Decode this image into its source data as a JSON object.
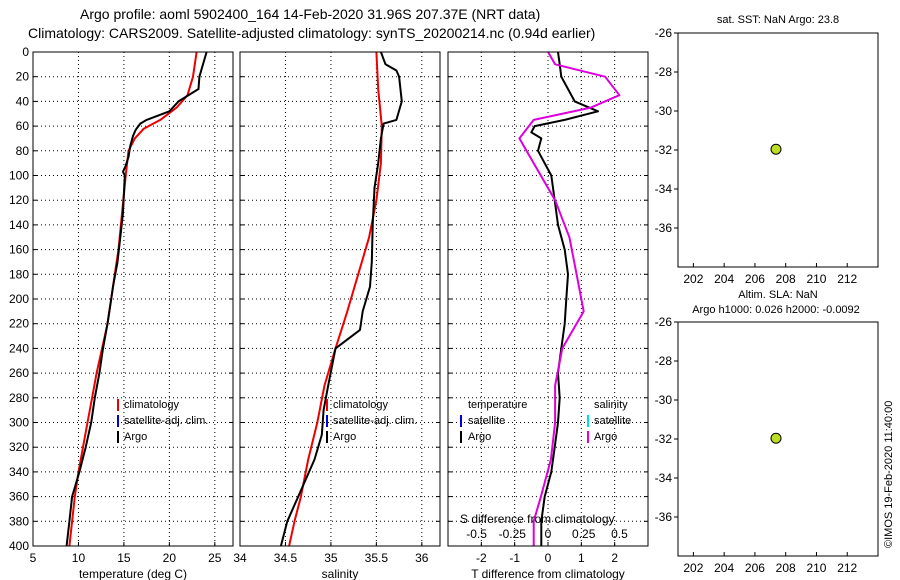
{
  "header": {
    "line1": "Argo profile: aoml 5902400_164 14-Feb-2020 31.96S 207.37E (NRT data)",
    "line2": "Climatology: CARS2009. Satellite-adjusted climatology: synTS_20200214.nc (0.94d earlier)"
  },
  "colors": {
    "climatology": "#ee0000",
    "satellite": "#0000dd",
    "argo": "#000000",
    "argo_salinity": "#dd00dd",
    "satellite_salinity": "#00dddd",
    "marker": "#bbdd22"
  },
  "chart_data": [
    {
      "id": "temperature",
      "type": "line",
      "xlabel": "temperature (deg C)",
      "xlim": [
        5,
        27
      ],
      "xticks": [
        5,
        10,
        15,
        20,
        25
      ],
      "ylim": [
        400,
        0
      ],
      "yticks": [
        0,
        20,
        40,
        60,
        80,
        100,
        120,
        140,
        160,
        180,
        200,
        220,
        240,
        260,
        280,
        300,
        320,
        340,
        360,
        380,
        400
      ],
      "grid": true,
      "legend": [
        "climatology",
        "satellite-adj. clim.",
        "Argo"
      ],
      "series": [
        {
          "name": "climatology",
          "color": "#ee0000",
          "points": [
            [
              23.0,
              0
            ],
            [
              22.6,
              20
            ],
            [
              22.0,
              35
            ],
            [
              20.8,
              45
            ],
            [
              19.0,
              55
            ],
            [
              17.2,
              62
            ],
            [
              16.2,
              70
            ],
            [
              15.5,
              80
            ],
            [
              15.2,
              100
            ],
            [
              14.8,
              130
            ],
            [
              14.4,
              160
            ],
            [
              14.0,
              180
            ],
            [
              13.6,
              200
            ],
            [
              13.2,
              220
            ],
            [
              12.6,
              240
            ],
            [
              12.0,
              260
            ],
            [
              11.5,
              280
            ],
            [
              11.0,
              300
            ],
            [
              10.5,
              320
            ],
            [
              10.0,
              340
            ],
            [
              9.6,
              360
            ],
            [
              9.3,
              380
            ],
            [
              9.0,
              400
            ]
          ]
        },
        {
          "name": "Argo",
          "color": "#000000",
          "points": [
            [
              24.1,
              0
            ],
            [
              23.7,
              10
            ],
            [
              23.3,
              20
            ],
            [
              23.2,
              30
            ],
            [
              21.0,
              40
            ],
            [
              20.0,
              48
            ],
            [
              17.5,
              55
            ],
            [
              16.8,
              58
            ],
            [
              16.3,
              63
            ],
            [
              16.0,
              68
            ],
            [
              15.7,
              76
            ],
            [
              15.5,
              85
            ],
            [
              15.2,
              92
            ],
            [
              14.9,
              97
            ],
            [
              15.1,
              100
            ],
            [
              14.9,
              130
            ],
            [
              14.6,
              150
            ],
            [
              14.3,
              170
            ],
            [
              13.8,
              190
            ],
            [
              13.6,
              200
            ],
            [
              13.2,
              220
            ],
            [
              12.7,
              240
            ],
            [
              12.3,
              260
            ],
            [
              11.8,
              280
            ],
            [
              11.4,
              300
            ],
            [
              10.8,
              320
            ],
            [
              10.1,
              340
            ],
            [
              9.3,
              360
            ],
            [
              9.0,
              380
            ],
            [
              8.7,
              400
            ]
          ]
        }
      ]
    },
    {
      "id": "salinity",
      "type": "line",
      "xlabel": "salinity",
      "xlim": [
        34,
        36.2
      ],
      "xticks": [
        "34",
        "34.5",
        "35",
        "35.5",
        "36"
      ],
      "ylim": [
        400,
        0
      ],
      "grid": true,
      "legend": [
        "climatology",
        "satellite-adj. clim.",
        "Argo"
      ],
      "series": [
        {
          "name": "climatology",
          "color": "#ee0000",
          "points": [
            [
              35.5,
              0
            ],
            [
              35.52,
              30
            ],
            [
              35.56,
              60
            ],
            [
              35.55,
              90
            ],
            [
              35.5,
              120
            ],
            [
              35.42,
              150
            ],
            [
              35.3,
              180
            ],
            [
              35.18,
              210
            ],
            [
              35.05,
              240
            ],
            [
              34.93,
              270
            ],
            [
              34.85,
              300
            ],
            [
              34.75,
              330
            ],
            [
              34.67,
              360
            ],
            [
              34.6,
              380
            ],
            [
              34.54,
              400
            ]
          ]
        },
        {
          "name": "Argo",
          "color": "#000000",
          "points": [
            [
              35.55,
              0
            ],
            [
              35.6,
              10
            ],
            [
              35.72,
              15
            ],
            [
              35.75,
              20
            ],
            [
              35.78,
              40
            ],
            [
              35.72,
              55
            ],
            [
              35.58,
              58
            ],
            [
              35.55,
              70
            ],
            [
              35.52,
              90
            ],
            [
              35.48,
              110
            ],
            [
              35.46,
              140
            ],
            [
              35.45,
              170
            ],
            [
              35.43,
              190
            ],
            [
              35.35,
              210
            ],
            [
              35.32,
              225
            ],
            [
              35.05,
              240
            ],
            [
              34.97,
              270
            ],
            [
              34.92,
              290
            ],
            [
              34.9,
              310
            ],
            [
              34.82,
              330
            ],
            [
              34.64,
              360
            ],
            [
              34.52,
              380
            ],
            [
              34.45,
              400
            ]
          ]
        }
      ]
    },
    {
      "id": "difference",
      "type": "line",
      "xlabel": "T difference from climatology",
      "toplabel": "S difference from climatology",
      "xlim": [
        -3,
        3
      ],
      "xticks": [
        "-2",
        "-1",
        "0",
        "1",
        "2"
      ],
      "topticks": [
        "-0.5",
        "-0.25",
        "0",
        "0.25",
        "0.5"
      ],
      "ylim": [
        400,
        0
      ],
      "grid": true,
      "legend_left_title": "temperature",
      "legend_right_title": "salinity",
      "legend_left": [
        "satellite",
        "Argo"
      ],
      "legend_right": [
        "satellite",
        "Argo"
      ],
      "series": [
        {
          "name": "T difference (Argo)",
          "color": "#000000",
          "points": [
            [
              0.3,
              0
            ],
            [
              0.35,
              10
            ],
            [
              0.4,
              20
            ],
            [
              0.6,
              30
            ],
            [
              0.8,
              40
            ],
            [
              1.5,
              48
            ],
            [
              0.5,
              55
            ],
            [
              -0.4,
              60
            ],
            [
              -0.5,
              65
            ],
            [
              -0.2,
              70
            ],
            [
              -0.3,
              80
            ],
            [
              0.1,
              100
            ],
            [
              0.2,
              120
            ],
            [
              0.3,
              140
            ],
            [
              0.5,
              160
            ],
            [
              0.6,
              180
            ],
            [
              0.55,
              200
            ],
            [
              0.5,
              220
            ],
            [
              0.4,
              240
            ],
            [
              0.3,
              260
            ],
            [
              0.35,
              280
            ],
            [
              0.3,
              300
            ],
            [
              0.2,
              320
            ],
            [
              0.1,
              340
            ],
            [
              -0.1,
              360
            ],
            [
              -0.2,
              380
            ],
            [
              -0.2,
              400
            ]
          ]
        },
        {
          "name": "S difference (Argo)",
          "color": "#dd00dd",
          "points": [
            [
              0.0,
              0
            ],
            [
              0.05,
              10
            ],
            [
              0.4,
              20
            ],
            [
              0.5,
              35
            ],
            [
              0.3,
              45
            ],
            [
              -0.1,
              55
            ],
            [
              -0.2,
              70
            ],
            [
              -0.1,
              90
            ],
            [
              0.05,
              120
            ],
            [
              0.15,
              150
            ],
            [
              0.2,
              180
            ],
            [
              0.25,
              210
            ],
            [
              0.1,
              240
            ],
            [
              0.05,
              270
            ],
            [
              0.05,
              300
            ],
            [
              0.02,
              330
            ],
            [
              -0.05,
              360
            ],
            [
              -0.1,
              380
            ],
            [
              -0.1,
              400
            ]
          ]
        }
      ]
    },
    {
      "id": "map-sst",
      "type": "scatter",
      "title": "sat. SST: NaN Argo: 23.8",
      "xlim": [
        201,
        214
      ],
      "xticks": [
        202,
        204,
        206,
        208,
        210,
        212
      ],
      "ylim": [
        -38,
        -26
      ],
      "yticks": [
        -26,
        -28,
        -30,
        -32,
        -34,
        -36
      ],
      "points": [
        [
          207.37,
          -31.96
        ]
      ]
    },
    {
      "id": "map-sla",
      "type": "scatter",
      "title": "Altim. SLA: NaN",
      "subtitle": "Argo h1000: 0.026 h2000: -0.0092",
      "xlim": [
        201,
        214
      ],
      "xticks": [
        202,
        204,
        206,
        208,
        210,
        212
      ],
      "ylim": [
        -38,
        -26
      ],
      "yticks": [
        -26,
        -28,
        -30,
        -32,
        -34,
        -36
      ],
      "points": [
        [
          207.37,
          -31.96
        ]
      ]
    }
  ],
  "footer": {
    "stamp": "©IMOS 19-Feb-2020 11:40:00"
  }
}
